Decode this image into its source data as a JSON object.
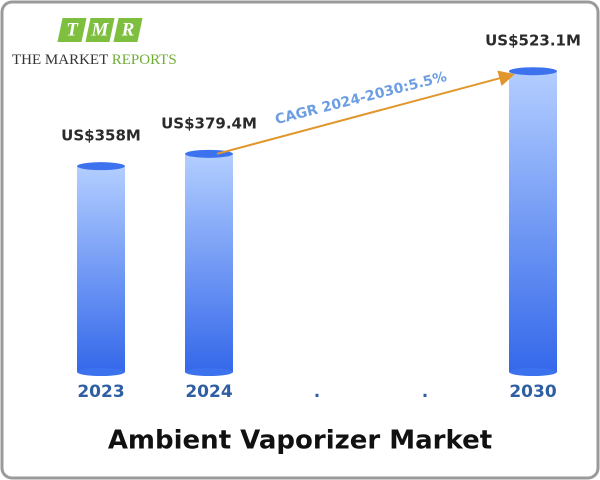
{
  "chart_data": {
    "type": "bar",
    "title": "Ambient Vaporizer Market",
    "logo": {
      "letters": [
        "T",
        "M",
        "R"
      ],
      "name": "THE MARKET",
      "name_accent": "REPORTS"
    },
    "annotation": "CAGR 2024-2030:5.5%",
    "categories": [
      "2023",
      "2024",
      ".",
      ".",
      "2030"
    ],
    "values": [
      358,
      379.4,
      null,
      null,
      523.1
    ],
    "value_labels": [
      "US$358M",
      "US$379.4M",
      null,
      null,
      "US$523.1M"
    ],
    "color": "#3d72ee",
    "ylim": [
      0,
      600
    ]
  }
}
